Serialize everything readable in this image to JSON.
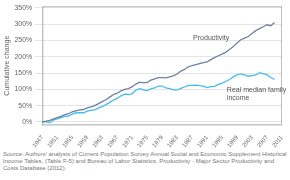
{
  "chart_data": {
    "type": "line",
    "y_label": "Cumulative change",
    "source": "Source: Authors' analysis of Current Population Survey Annual Social and Economic Supplement Historical Income Tables, (Table F-5) and Bureau of Labor Statistics, Productivity - Major Sector Productivity and Costs Database (2012).",
    "x": [
      1947,
      1948,
      1949,
      1950,
      1951,
      1952,
      1953,
      1954,
      1955,
      1956,
      1957,
      1958,
      1959,
      1960,
      1961,
      1962,
      1963,
      1964,
      1965,
      1966,
      1967,
      1968,
      1969,
      1970,
      1971,
      1972,
      1973,
      1974,
      1975,
      1976,
      1977,
      1978,
      1979,
      1980,
      1981,
      1982,
      1983,
      1984,
      1985,
      1986,
      1987,
      1988,
      1989,
      1990,
      1991,
      1992,
      1993,
      1994,
      1995,
      1996,
      1997,
      1998,
      1999,
      2000,
      2001,
      2002,
      2003,
      2004,
      2005,
      2006,
      2007,
      2008,
      2009
    ],
    "series": [
      {
        "name": "Productivity",
        "color": "#7080a0",
        "values": [
          0.0,
          0.02,
          0.05,
          0.09,
          0.13,
          0.17,
          0.22,
          0.25,
          0.31,
          0.34,
          0.37,
          0.38,
          0.43,
          0.46,
          0.5,
          0.56,
          0.62,
          0.68,
          0.76,
          0.84,
          0.88,
          0.95,
          1.0,
          1.02,
          1.08,
          1.16,
          1.22,
          1.2,
          1.21,
          1.28,
          1.32,
          1.36,
          1.36,
          1.35,
          1.38,
          1.41,
          1.47,
          1.56,
          1.61,
          1.69,
          1.73,
          1.76,
          1.79,
          1.82,
          1.84,
          1.91,
          1.97,
          2.03,
          2.08,
          2.14,
          2.22,
          2.31,
          2.42,
          2.52,
          2.57,
          2.62,
          2.71,
          2.8,
          2.86,
          2.92,
          2.98,
          2.95,
          3.05
        ]
      },
      {
        "name": "Real median family income",
        "color": "#44bbee",
        "values": [
          0.0,
          0.0,
          -0.02,
          0.06,
          0.09,
          0.13,
          0.17,
          0.18,
          0.24,
          0.28,
          0.28,
          0.28,
          0.33,
          0.35,
          0.37,
          0.43,
          0.47,
          0.53,
          0.6,
          0.67,
          0.72,
          0.8,
          0.85,
          0.84,
          0.87,
          0.97,
          1.02,
          0.98,
          0.96,
          1.01,
          1.04,
          1.1,
          1.1,
          1.04,
          1.02,
          0.98,
          0.98,
          1.03,
          1.07,
          1.12,
          1.12,
          1.13,
          1.11,
          1.1,
          1.05,
          1.08,
          1.09,
          1.15,
          1.19,
          1.24,
          1.3,
          1.38,
          1.44,
          1.47,
          1.44,
          1.4,
          1.42,
          1.44,
          1.51,
          1.47,
          1.45,
          1.36,
          1.3
        ]
      }
    ],
    "annotations": [
      {
        "text": "Productivity",
        "x": 1987,
        "y": 2.42,
        "color": "#555555"
      },
      {
        "text": "Real median family\nincome",
        "x": 1996,
        "y": 1.08,
        "color": "#555555"
      }
    ],
    "xlim": [
      1947,
      2011
    ],
    "xticks": [
      1947,
      1951,
      1955,
      1959,
      1963,
      1967,
      1971,
      1975,
      1979,
      1983,
      1987,
      1991,
      1995,
      1999,
      2003,
      2007,
      2011
    ],
    "ylim": [
      -0.1,
      3.55
    ],
    "yticks": [
      {
        "value": 0.0,
        "label": "0%"
      },
      {
        "value": 0.5,
        "label": "50%"
      },
      {
        "value": 1.0,
        "label": "100%"
      },
      {
        "value": 1.5,
        "label": "150%"
      },
      {
        "value": 2.0,
        "label": "200%"
      },
      {
        "value": 2.5,
        "label": "250%"
      },
      {
        "value": 3.0,
        "label": "300%"
      },
      {
        "value": 3.5,
        "label": "350%"
      }
    ],
    "grid": true
  }
}
